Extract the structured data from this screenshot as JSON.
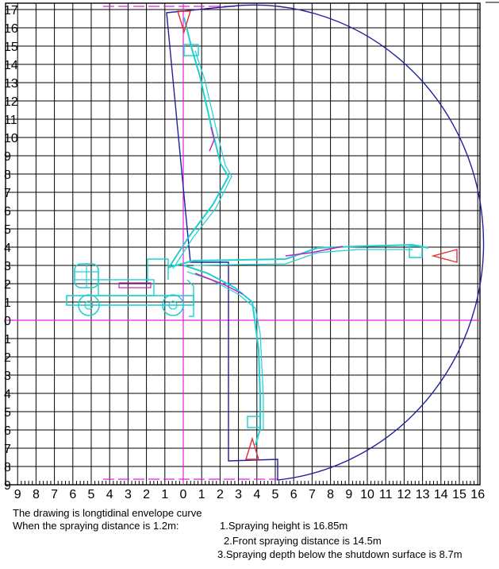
{
  "diagram": {
    "y_ticks_up": [
      "17",
      "16",
      "15",
      "14",
      "13",
      "12",
      "11",
      "10",
      "9",
      "8",
      "7",
      "6",
      "5",
      "4",
      "3",
      "2",
      "1",
      "0"
    ],
    "y_ticks_down": [
      "1",
      "2",
      "3",
      "4",
      "5",
      "6",
      "7",
      "8",
      "9"
    ],
    "x_ticks_left": [
      "9",
      "8",
      "7",
      "6",
      "5",
      "4",
      "3",
      "2",
      "1",
      "0"
    ],
    "x_ticks_right": [
      "1",
      "2",
      "3",
      "4",
      "5",
      "6",
      "7",
      "8",
      "9",
      "10",
      "11",
      "12",
      "13",
      "14",
      "15",
      "16"
    ],
    "colors": {
      "grid": "#000000",
      "axis": "#e020e0",
      "envelope": "#2020a0",
      "boom": "#20d0d0",
      "boom_detail": "#c020c0",
      "nozzle": "#e03030"
    }
  },
  "caption": {
    "line1": "The drawing is longtidinal envelope curve",
    "line2_prefix": "When the spraying distance is 1.2m:",
    "item1": "1.Spraying height is 16.85m",
    "item2": "2.Front spraying distance is 14.5m",
    "item3": "3.Spraying depth below the shutdown surface is 8.7m"
  }
}
